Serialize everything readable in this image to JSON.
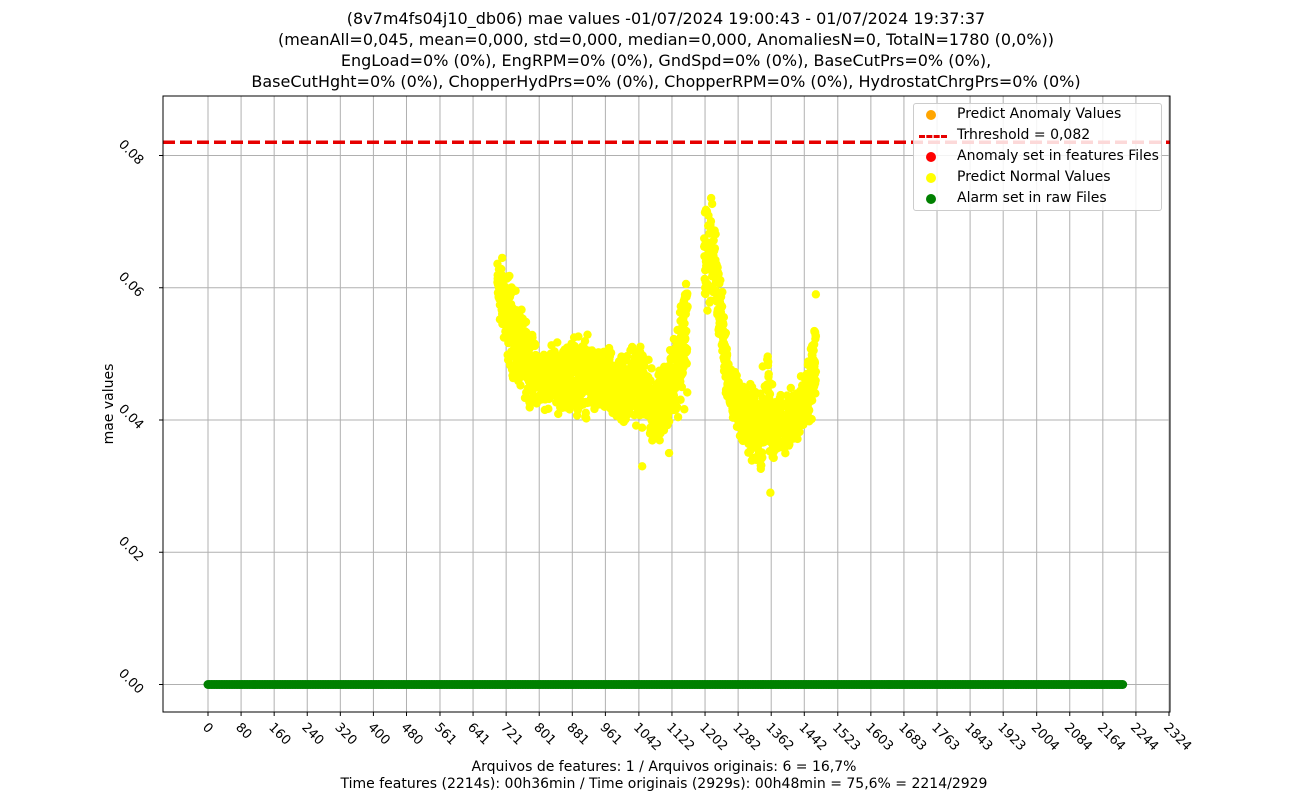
{
  "title": {
    "line1": "(8v7m4fs04j10_db06) mae values -01/07/2024 19:00:43 - 01/07/2024 19:37:37",
    "line2": "(meanAll=0,045, mean=0,000, std=0,000, median=0,000, AnomaliesN=0, TotalN=1780 (0,0%))",
    "line3": "EngLoad=0% (0%), EngRPM=0% (0%), GndSpd=0% (0%), BaseCutPrs=0% (0%),",
    "line4": "BaseCutHght=0% (0%), ChopperHydPrs=0% (0%), ChopperRPM=0% (0%), HydrostatChrgPrs=0% (0%)"
  },
  "footer": {
    "line1": "Arquivos de features: 1 / Arquivos originais: 6 = 16,7%",
    "line2": "Time features (2214s): 00h36min / Time originais (2929s): 00h48min = 75,6% = 2214/2929"
  },
  "chart_data": {
    "type": "scatter",
    "ylabel": "mae values",
    "xlim": [
      -100,
      2324
    ],
    "ylim": [
      -0.0035,
      0.0865
    ],
    "x_ticks": [
      "0",
      "80",
      "160",
      "240",
      "320",
      "400",
      "480",
      "561",
      "641",
      "721",
      "801",
      "881",
      "961",
      "1042",
      "1122",
      "1202",
      "1282",
      "1362",
      "1442",
      "1523",
      "1603",
      "1683",
      "1763",
      "1843",
      "1923",
      "2004",
      "2084",
      "2164",
      "2244",
      "2324"
    ],
    "y_ticks": [
      "0.00",
      "0.02",
      "0.04",
      "0.06",
      "0.08"
    ],
    "grid": true,
    "threshold": {
      "value": 0.082,
      "label": "Trhreshold = 0,082",
      "color": "#e60000"
    },
    "legend": {
      "position": "top-right",
      "entries": [
        {
          "label": "Predict Anomaly Values",
          "color": "#ffa500",
          "kind": "dot"
        },
        {
          "label": "Trhreshold = 0,082",
          "color": "#e60000",
          "kind": "dashed-line"
        },
        {
          "label": "Anomaly set in features Files",
          "color": "#ff0000",
          "kind": "dot"
        },
        {
          "label": "Predict Normal Values",
          "color": "#ffff00",
          "kind": "dot"
        },
        {
          "label": "Alarm set in raw Files",
          "color": "#008000",
          "kind": "dot"
        }
      ]
    },
    "series": [
      {
        "name": "Predict Normal Values",
        "color": "#ffff00",
        "segments": [
          {
            "x_range": [
              700,
              1160
            ],
            "envelope": [
              [
                700,
                0.055,
                0.066
              ],
              [
                720,
                0.047,
                0.067
              ],
              [
                740,
                0.044,
                0.061
              ],
              [
                760,
                0.042,
                0.058
              ],
              [
                800,
                0.041,
                0.052
              ],
              [
                850,
                0.04,
                0.053
              ],
              [
                900,
                0.039,
                0.055
              ],
              [
                950,
                0.039,
                0.052
              ],
              [
                1000,
                0.037,
                0.052
              ],
              [
                1040,
                0.038,
                0.054
              ],
              [
                1080,
                0.035,
                0.048
              ],
              [
                1120,
                0.038,
                0.052
              ],
              [
                1160,
                0.04,
                0.069
              ]
            ]
          },
          {
            "x_range": [
              1200,
              1470
            ],
            "envelope": [
              [
                1200,
                0.052,
                0.077
              ],
              [
                1220,
                0.055,
                0.075
              ],
              [
                1240,
                0.048,
                0.064
              ],
              [
                1260,
                0.04,
                0.05
              ],
              [
                1280,
                0.037,
                0.048
              ],
              [
                1300,
                0.033,
                0.048
              ],
              [
                1330,
                0.031,
                0.045
              ],
              [
                1350,
                0.03,
                0.054
              ],
              [
                1370,
                0.033,
                0.045
              ],
              [
                1400,
                0.034,
                0.045
              ],
              [
                1440,
                0.036,
                0.048
              ],
              [
                1470,
                0.04,
                0.059
              ]
            ]
          }
        ],
        "notable_points": [
          [
            1115,
            0.035
          ],
          [
            1050,
            0.033
          ],
          [
            1360,
            0.029
          ],
          [
            1470,
            0.059
          ]
        ]
      },
      {
        "name": "Alarm set in raw Files",
        "color": "#008000",
        "x_range": [
          0,
          2214
        ],
        "y": 0.0
      }
    ]
  }
}
